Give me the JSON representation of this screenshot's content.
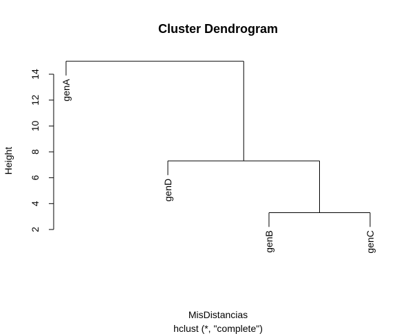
{
  "chart_data": {
    "type": "dendrogram",
    "title": "Cluster Dendrogram",
    "xlabel": "MisDistancias",
    "sub": "hclust (*, \"complete\")",
    "ylabel": "Height",
    "ylim": [
      2,
      15
    ],
    "yticks": [
      2,
      4,
      6,
      8,
      10,
      12,
      14
    ],
    "leaves": [
      "genA",
      "genD",
      "genB",
      "genC"
    ],
    "merges": [
      {
        "left": "genB",
        "right": "genC",
        "height": 3.3
      },
      {
        "left": "genD",
        "right": "genB+genC",
        "height": 7.3
      },
      {
        "left": "genA",
        "right": "genD+genB+genC",
        "height": 15.0
      }
    ]
  }
}
